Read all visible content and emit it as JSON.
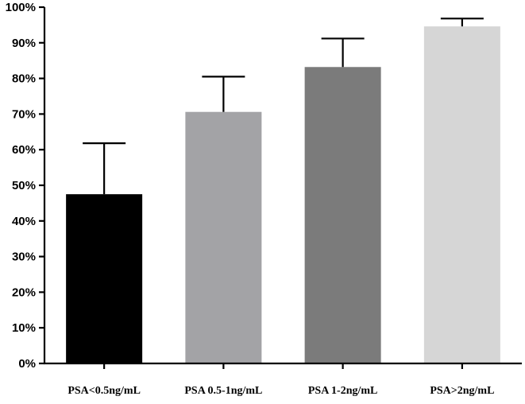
{
  "chart_data": {
    "type": "bar",
    "categories": [
      "PSA<0.5ng/mL",
      "PSA 0.5-1ng/mL",
      "PSA 1-2ng/mL",
      "PSA>2ng/mL"
    ],
    "values": [
      47.5,
      70.6,
      83.2,
      94.6
    ],
    "error_upper": [
      61.8,
      80.5,
      91.2,
      96.8
    ],
    "colors": [
      "#000000",
      "#a3a3a6",
      "#7b7b7b",
      "#d6d6d6"
    ],
    "ylim": [
      0,
      100
    ],
    "yticks": [
      0,
      10,
      20,
      30,
      40,
      50,
      60,
      70,
      80,
      90,
      100
    ],
    "ytick_labels": [
      "0%",
      "10%",
      "20%",
      "30%",
      "40%",
      "50%",
      "60%",
      "70%",
      "80%",
      "90%",
      "100%"
    ],
    "title": "",
    "xlabel": "",
    "ylabel": "",
    "grid": false,
    "legend": "none"
  }
}
